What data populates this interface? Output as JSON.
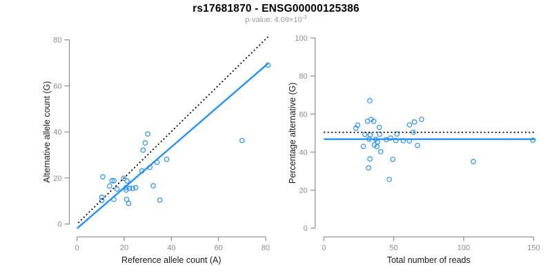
{
  "title": "rs17681870 - ENSG00000125386",
  "subtitle": {
    "prefix": "p-value: 4.09×10",
    "exponent": "-3"
  },
  "colors": {
    "accent_blue": "#1E90FF",
    "reference_black": "#000000",
    "axis_gray": "#8a8a8a",
    "tick_label_gray": "#8a8a8a",
    "axis_title": "#1a1a1a",
    "title": "#000000",
    "subtitle": "#9a9a9a",
    "background": "#ffffff"
  },
  "chart_data": [
    {
      "type": "scatter",
      "name": "allele-counts",
      "xlabel": "Reference allele count (A)",
      "ylabel": "Alternative allele count (G)",
      "xlim": [
        0,
        80
      ],
      "ylim": [
        0,
        80
      ],
      "xticks": [
        0,
        20,
        40,
        60,
        80
      ],
      "yticks": [
        0,
        20,
        40,
        60,
        80
      ],
      "grid": false,
      "legend": null,
      "points": [
        [
          81,
          69
        ],
        [
          70,
          36.3
        ],
        [
          30,
          39.1
        ],
        [
          28.9,
          35.2
        ],
        [
          28,
          32.1
        ],
        [
          38,
          28.1
        ],
        [
          33.9,
          26.8
        ],
        [
          30.9,
          24.6
        ],
        [
          27.5,
          23.1
        ],
        [
          10.9,
          20.5
        ],
        [
          14.8,
          18.8
        ],
        [
          15.7,
          18.8
        ],
        [
          13.8,
          16.5
        ],
        [
          19.8,
          19.9
        ],
        [
          21.2,
          18.7
        ],
        [
          16.9,
          15.2
        ],
        [
          20.8,
          15.8
        ],
        [
          20.8,
          14.8
        ],
        [
          22.2,
          15.5
        ],
        [
          23.5,
          15.5
        ],
        [
          24.9,
          15.8
        ],
        [
          10.5,
          11.6
        ],
        [
          10.5,
          10.2
        ],
        [
          15.6,
          10.7
        ],
        [
          21,
          10.7
        ],
        [
          21.9,
          9
        ],
        [
          32.3,
          16.6
        ],
        [
          35.1,
          10.4
        ]
      ],
      "lines": [
        {
          "name": "identity-line",
          "style": "dotted",
          "color": "#000000",
          "points": [
            [
              0.5,
              0.5
            ],
            [
              81.3,
              81.6
            ]
          ]
        },
        {
          "name": "fit-line",
          "style": "solid",
          "color": "#1E90FF",
          "points": [
            [
              0,
              -1.9
            ],
            [
              81,
              69.7
            ]
          ]
        }
      ]
    },
    {
      "type": "scatter",
      "name": "percentage-vs-reads",
      "xlabel": "Total number of reads",
      "ylabel": "Percentage alternative (G)",
      "xlim": [
        0,
        150
      ],
      "ylim": [
        0,
        100
      ],
      "xticks": [
        0,
        50,
        100,
        150
      ],
      "yticks": [
        0,
        20,
        40,
        60,
        80,
        100
      ],
      "grid": false,
      "legend": null,
      "points": [
        [
          32.9,
          67
        ],
        [
          24.2,
          54.2
        ],
        [
          22.9,
          52.5
        ],
        [
          31.2,
          56.2
        ],
        [
          33.8,
          57.2
        ],
        [
          35.7,
          56.2
        ],
        [
          39.7,
          53
        ],
        [
          29.4,
          49.3
        ],
        [
          33.2,
          49.1
        ],
        [
          39.9,
          49.4
        ],
        [
          32.4,
          46.8
        ],
        [
          37.1,
          46.7
        ],
        [
          38.4,
          45.4
        ],
        [
          36.1,
          43.8
        ],
        [
          38,
          42.9
        ],
        [
          28.3,
          43
        ],
        [
          40.7,
          40.2
        ],
        [
          44.7,
          46.5
        ],
        [
          47.7,
          47.4
        ],
        [
          49.3,
          36.2
        ],
        [
          33,
          36.4
        ],
        [
          32,
          31.7
        ],
        [
          46.8,
          25.6
        ],
        [
          52.3,
          49.5
        ],
        [
          51.5,
          46.1
        ],
        [
          56.8,
          46
        ],
        [
          61.3,
          54.3
        ],
        [
          64.8,
          55.8
        ],
        [
          64,
          50.4
        ],
        [
          61.2,
          45.9
        ],
        [
          69.9,
          57.2
        ],
        [
          67,
          43.5
        ],
        [
          106.9,
          35
        ],
        [
          149.5,
          46.2
        ]
      ],
      "lines": [
        {
          "name": "fifty-percent-line",
          "style": "dotted",
          "color": "#000000",
          "points": [
            [
              0,
              50.4
            ],
            [
              151.5,
              50.4
            ]
          ]
        },
        {
          "name": "mean-line",
          "style": "solid",
          "color": "#1E90FF",
          "points": [
            [
              0,
              46.8
            ],
            [
              151.5,
              46.8
            ]
          ]
        }
      ]
    }
  ]
}
